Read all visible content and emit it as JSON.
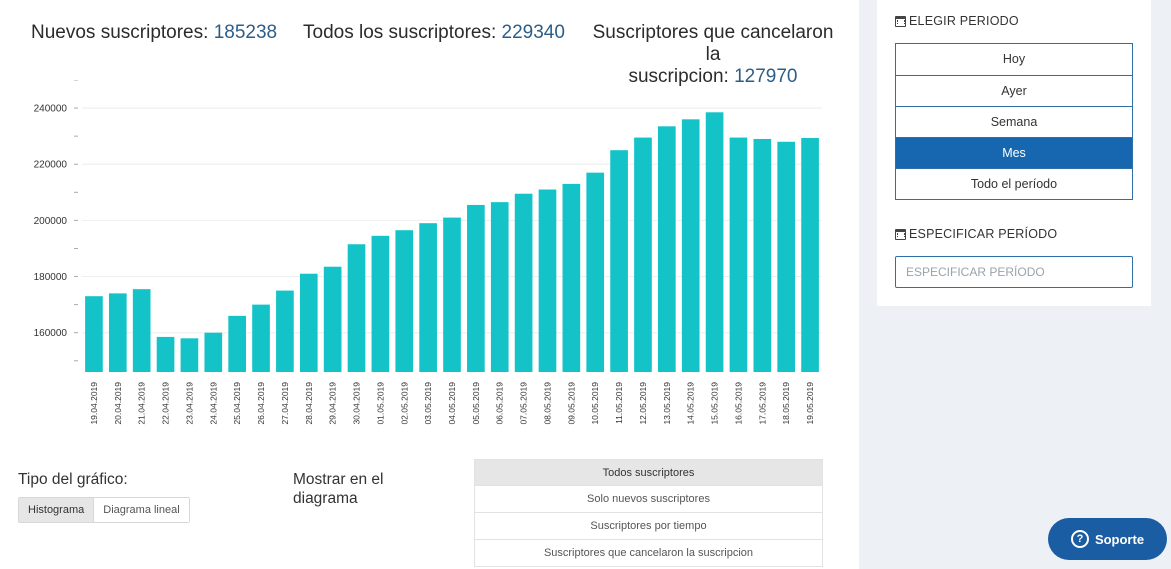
{
  "stats": {
    "new_label": "Nuevos suscriptores:",
    "new_value": "185238",
    "all_label": "Todos los suscriptores:",
    "all_value": "229340",
    "cancel_label_1": "Suscriptores que cancelaron la",
    "cancel_label_2": "suscripcion:",
    "cancel_value": "127970"
  },
  "sidebar": {
    "period_title": "ELEGIR PERIODO",
    "periods": [
      {
        "label": "Hoy",
        "active": false
      },
      {
        "label": "Ayer",
        "active": false
      },
      {
        "label": "Semana",
        "active": false
      },
      {
        "label": "Mes",
        "active": true
      },
      {
        "label": "Todo el período",
        "active": false
      }
    ],
    "specify_title": "ESPECIFICAR PERÍODO",
    "specify_placeholder": "ESPECIFICAR PERÍODO"
  },
  "controls": {
    "type_label": "Tipo del gráfico:",
    "type_buttons": [
      "Histograma",
      "Diagrama lineal"
    ],
    "show_label_1": "Mostrar en el",
    "show_label_2": "diagrama",
    "series_options": [
      "Todos suscriptores",
      "Solo nuevos suscriptores",
      "Suscriptores por tiempo",
      "Suscriptores que cancelaron la suscripcion"
    ]
  },
  "support_label": "Soporte",
  "colors": {
    "bar": "#14c3c8",
    "accent": "#1666b0",
    "stat_value": "#2d5d87"
  },
  "chart_data": {
    "type": "bar",
    "categories": [
      "19.04.2019",
      "20.04.2019",
      "21.04.2019",
      "22.04.2019",
      "23.04.2019",
      "24.04.2019",
      "25.04.2019",
      "26.04.2019",
      "27.04.2019",
      "28.04.2019",
      "29.04.2019",
      "30.04.2019",
      "01.05.2019",
      "02.05.2019",
      "03.05.2019",
      "04.05.2019",
      "05.05.2019",
      "06.05.2019",
      "07.05.2019",
      "08.05.2019",
      "09.05.2019",
      "10.05.2019",
      "11.05.2019",
      "12.05.2019",
      "13.05.2019",
      "14.05.2019",
      "15.05.2019",
      "16.05.2019",
      "17.05.2019",
      "18.05.2019",
      "19.05.2019"
    ],
    "values": [
      173000,
      174000,
      175500,
      158500,
      158000,
      160000,
      166000,
      170000,
      175000,
      181000,
      183500,
      191500,
      194500,
      196500,
      199000,
      201000,
      205500,
      206500,
      209500,
      211000,
      213000,
      217000,
      225000,
      229500,
      233500,
      236000,
      238500,
      229500,
      229000,
      228000,
      229340
    ],
    "yticks": [
      160000,
      180000,
      200000,
      220000,
      240000
    ],
    "ylim": [
      146000,
      250000
    ],
    "grid": true
  }
}
